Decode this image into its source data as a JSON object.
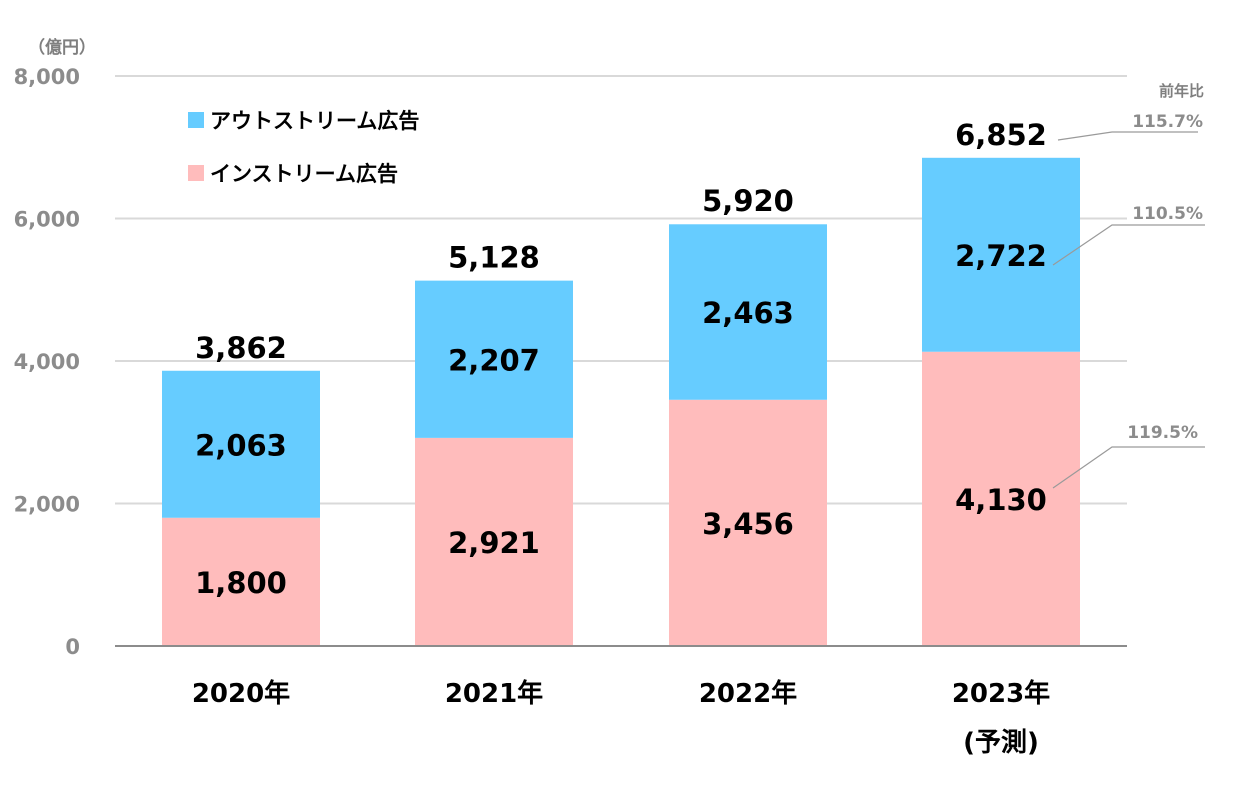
{
  "chart_data": {
    "type": "bar",
    "stacked": true,
    "unit_label": "（億円）",
    "categories": [
      "2020年",
      "2021年",
      "2022年",
      "2023年"
    ],
    "category_sublabels": [
      "",
      "",
      "",
      "(予測)"
    ],
    "series": [
      {
        "name": "インストリーム広告",
        "values": [
          1800,
          2921,
          3456,
          4130
        ],
        "value_labels": [
          "1,800",
          "2,921",
          "3,456",
          "4,130"
        ],
        "color": "#ffbcbc"
      },
      {
        "name": "アウトストリーム広告",
        "values": [
          2063,
          2207,
          2463,
          2722
        ],
        "value_labels": [
          "2,063",
          "2,207",
          "2,463",
          "2,722"
        ],
        "color": "#66ccff"
      }
    ],
    "totals": [
      3862,
      5128,
      5920,
      6852
    ],
    "total_labels": [
      "3,862",
      "5,128",
      "5,920",
      "6,852"
    ],
    "ylim": [
      0,
      8000
    ],
    "yticks": [
      0,
      2000,
      4000,
      6000,
      8000
    ],
    "ytick_labels": [
      "0",
      "2,000",
      "4,000",
      "6,000",
      "8,000"
    ],
    "grid": true,
    "legend_position": "top-left",
    "yoy_title": "前年比",
    "yoy": {
      "total": "115.7%",
      "outstream": "110.5%",
      "instream": "119.5%"
    }
  }
}
